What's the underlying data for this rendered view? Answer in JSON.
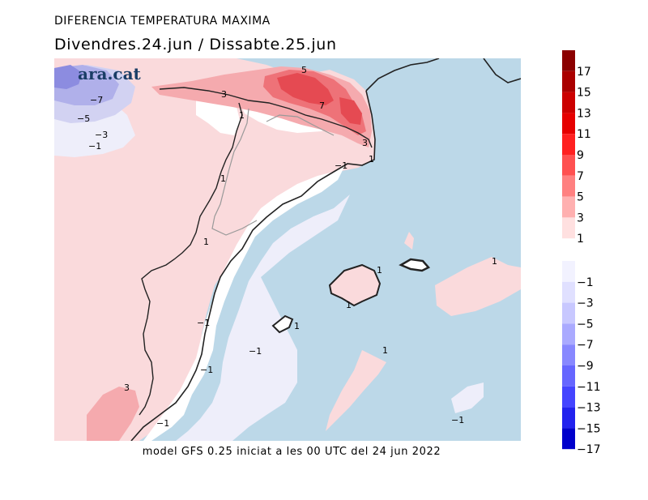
{
  "header": {
    "title": "DIFERENCIA TEMPERATURA MAXIMA",
    "subtitle": "Divendres.24.jun / Dissabte.25.jun"
  },
  "footer": {
    "text": "model GFS 0.25 iniciat a les 00 UTC del 24 jun 2022"
  },
  "logo": {
    "text": "ara.cat"
  },
  "colors": {
    "sea": "#bcd8e8",
    "land_pos1": "#fadadc",
    "pos3": "#f5aaae",
    "pos5": "#ee7278",
    "pos7": "#e54a52",
    "neg1": "#eeeefa",
    "neg3": "#d2d2f2",
    "neg5": "#b0b0ea",
    "neg7": "#8c8ce0"
  },
  "legend": {
    "positive": [
      {
        "label": "17",
        "color": "#8b0000"
      },
      {
        "label": "15",
        "color": "#aa0000"
      },
      {
        "label": "13",
        "color": "#cc0000"
      },
      {
        "label": "11",
        "color": "#e60000"
      },
      {
        "label": "9",
        "color": "#ff2020"
      },
      {
        "label": "7",
        "color": "#ff5050"
      },
      {
        "label": "5",
        "color": "#ff8080"
      },
      {
        "label": "3",
        "color": "#ffb0b0"
      },
      {
        "label": "1",
        "color": "#ffe0e0"
      }
    ],
    "negative": [
      {
        "label": "−1",
        "color": "#f2f2ff"
      },
      {
        "label": "−3",
        "color": "#e0e0ff"
      },
      {
        "label": "−5",
        "color": "#c8c8ff"
      },
      {
        "label": "−7",
        "color": "#aaaaff"
      },
      {
        "label": "−9",
        "color": "#8888ff"
      },
      {
        "label": "−11",
        "color": "#6666ff"
      },
      {
        "label": "−13",
        "color": "#4444ff"
      },
      {
        "label": "−15",
        "color": "#2222ee"
      },
      {
        "label": "−17",
        "color": "#0000cc"
      }
    ]
  },
  "contour_labels": [
    {
      "text": "5"
    },
    {
      "text": "3"
    },
    {
      "text": "7"
    },
    {
      "text": "1"
    },
    {
      "text": "3"
    },
    {
      "text": "1"
    },
    {
      "text": "−1"
    },
    {
      "text": "1"
    },
    {
      "text": "1"
    },
    {
      "text": "1"
    },
    {
      "text": "−7"
    },
    {
      "text": "−5"
    },
    {
      "text": "−3"
    },
    {
      "text": "−1"
    },
    {
      "text": "1"
    },
    {
      "text": "1"
    },
    {
      "text": "−1"
    },
    {
      "text": "1"
    },
    {
      "text": "−1"
    },
    {
      "text": "1"
    },
    {
      "text": "−1"
    },
    {
      "text": "3"
    },
    {
      "text": "−1"
    },
    {
      "text": "−1"
    }
  ]
}
